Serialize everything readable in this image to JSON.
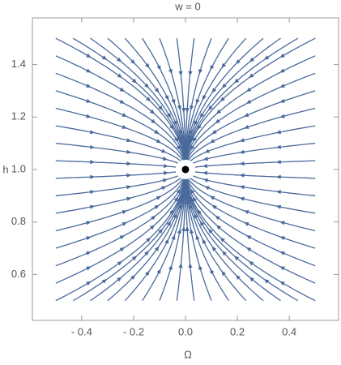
{
  "chart_data": {
    "type": "stream",
    "title": "w = 0",
    "x_label": "Ω",
    "y_label": "h",
    "xlim": [
      -0.59,
      0.59
    ],
    "ylim": [
      0.425,
      1.578
    ],
    "xticks": [
      {
        "value": -0.4,
        "label": "- 0.4"
      },
      {
        "value": -0.2,
        "label": "- 0.2"
      },
      {
        "value": 0,
        "label": "0.0"
      },
      0.2,
      0.4
    ],
    "yticks": [
      0.6,
      0.8,
      {
        "value": 1,
        "label": "1.0"
      },
      1.2,
      1.4
    ],
    "x_range": [
      -0.5,
      0.5
    ],
    "y_range": [
      0.5,
      1.5
    ],
    "fixed_point": {
      "x": 0,
      "y": 1
    },
    "color": "#4a6a9c"
  }
}
